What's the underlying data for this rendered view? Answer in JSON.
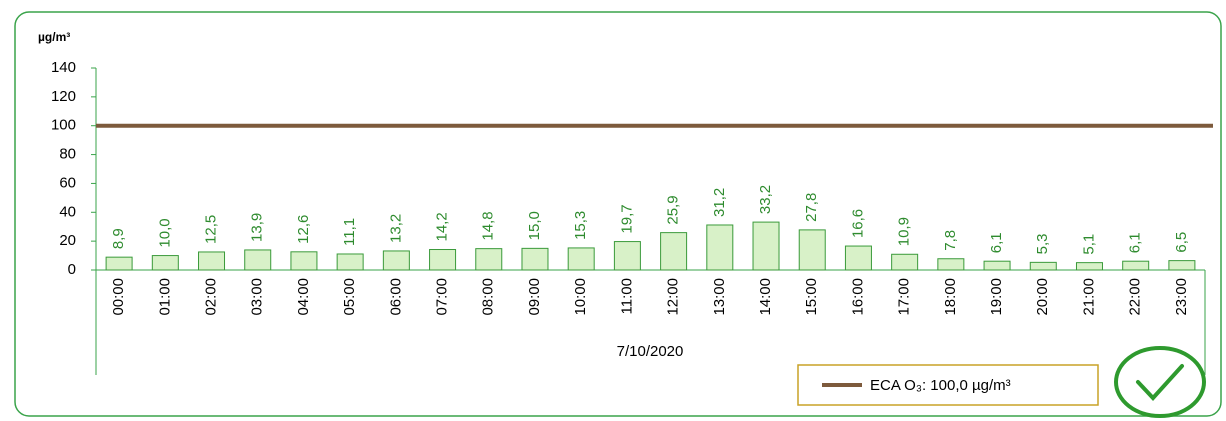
{
  "chart_data": {
    "type": "bar",
    "y_label": "µg/m³",
    "x_label": "7/10/2020",
    "categories": [
      "00:00",
      "01:00",
      "02:00",
      "03:00",
      "04:00",
      "05:00",
      "06:00",
      "07:00",
      "08:00",
      "09:00",
      "10:00",
      "11:00",
      "12:00",
      "13:00",
      "14:00",
      "15:00",
      "16:00",
      "17:00",
      "18:00",
      "19:00",
      "20:00",
      "21:00",
      "22:00",
      "23:00"
    ],
    "values": [
      8.9,
      10.0,
      12.5,
      13.9,
      12.6,
      11.1,
      13.2,
      14.2,
      14.8,
      15.0,
      15.3,
      19.7,
      25.9,
      31.2,
      33.2,
      27.8,
      16.6,
      10.9,
      7.8,
      6.1,
      5.3,
      5.1,
      6.1,
      6.5
    ],
    "value_labels": [
      "8,9",
      "10,0",
      "12,5",
      "13,9",
      "12,6",
      "11,1",
      "13,2",
      "14,2",
      "14,8",
      "15,0",
      "15,3",
      "19,7",
      "25,9",
      "31,2",
      "33,2",
      "27,8",
      "16,6",
      "10,9",
      "7,8",
      "6,1",
      "5,3",
      "5,1",
      "6,1",
      "6,5"
    ],
    "color": "#d8f1c8",
    "ylim": [
      0,
      140
    ],
    "yticks": [
      0,
      20,
      40,
      60,
      80,
      100,
      120,
      140
    ],
    "reference": {
      "name": "ECA O₃: 100,0  µg/m³",
      "value": 100,
      "color": "#7d5a3c"
    }
  }
}
